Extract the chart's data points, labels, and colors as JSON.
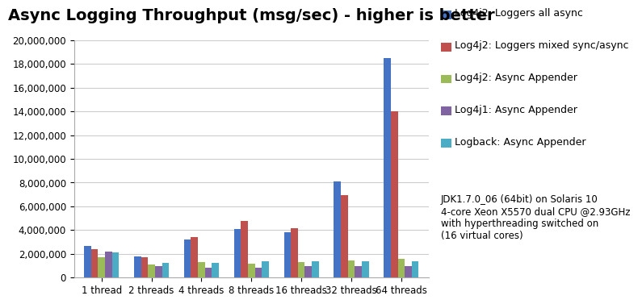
{
  "title": "Async Logging Throughput (msg/sec) - higher is better",
  "categories": [
    "1 thread",
    "2 threads",
    "4 threads",
    "8 threads",
    "16 threads",
    "32 threads",
    "64 threads"
  ],
  "series": [
    {
      "name": "Log4j2: Loggers all async",
      "color": "#4472C4",
      "values": [
        2650000,
        1800000,
        3200000,
        4100000,
        3800000,
        8100000,
        18500000
      ]
    },
    {
      "name": "Log4j2: Loggers mixed sync/async",
      "color": "#C0504D",
      "values": [
        2400000,
        1700000,
        3400000,
        4750000,
        4150000,
        6950000,
        14000000
      ]
    },
    {
      "name": "Log4j2: Async Appender",
      "color": "#9BBB59",
      "values": [
        1700000,
        1100000,
        1300000,
        1200000,
        1300000,
        1450000,
        1550000
      ]
    },
    {
      "name": "Log4j1: Async Appender",
      "color": "#8064A2",
      "values": [
        2200000,
        1000000,
        850000,
        850000,
        950000,
        1000000,
        950000
      ]
    },
    {
      "name": "Logback: Async Appender",
      "color": "#4BACC6",
      "values": [
        2150000,
        1250000,
        1250000,
        1350000,
        1350000,
        1350000,
        1350000
      ]
    }
  ],
  "ylim": [
    0,
    20000000
  ],
  "ytick_step": 2000000,
  "annotation": "JDK1.7.0_06 (64bit) on Solaris 10\n4-core Xeon X5570 dual CPU @2.93GHz\nwith hyperthreading switched on\n(16 virtual cores)",
  "annotation_fontsize": 8.5,
  "background_color": "#FFFFFF",
  "plot_bg_color": "#FFFFFF",
  "grid_color": "#CCCCCC",
  "title_fontsize": 14,
  "legend_fontsize": 9,
  "tick_fontsize": 8.5
}
